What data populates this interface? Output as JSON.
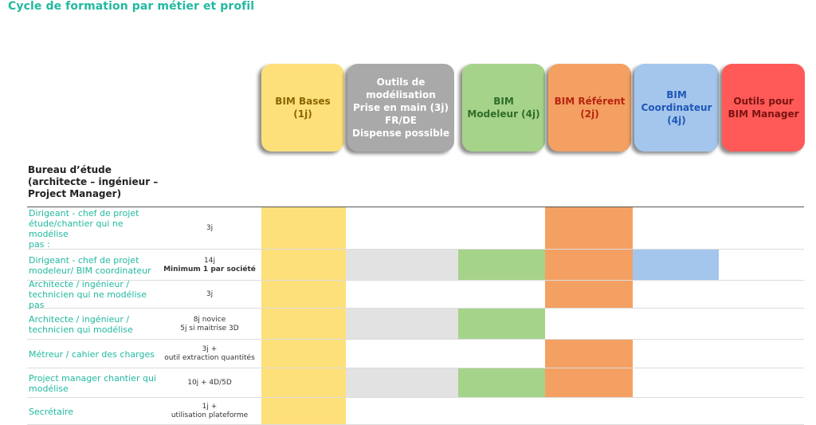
{
  "title": "Cycle de formation par métier et profil",
  "modules": [
    {
      "label": "BIM Bases (1j)",
      "bg": "#fde07a",
      "fg": "#8a6500"
    },
    {
      "label": "Outils de\nmodélisation\nPrise en main (3j)\nFR/DE\nDispense possible",
      "bg": "#a9a9a9",
      "fg": "#ffffff"
    },
    {
      "label": "BIM\nModeleur (4j)",
      "bg": "#a6d38a",
      "fg": "#2f6d2a"
    },
    {
      "label": "BIM Référent\n(2j)",
      "bg": "#f4a062",
      "fg": "#b8250f"
    },
    {
      "label": "BIM\nCoordinateur\n(4j)",
      "bg": "#a5c6ec",
      "fg": "#1f57b7"
    },
    {
      "label": "Outils pour\nBIM Manager",
      "bg": "#ff5a57",
      "fg": "#7a1212"
    }
  ],
  "group": {
    "heading": "Bureau d’étude\n(architecte – ingénieur –\nProject Manager)"
  },
  "rows": [
    {
      "label": "Dirigeant - chef de projet\nétude/chantier qui ne modélise\npas :",
      "duration": "3j",
      "note": "",
      "note_bold": false,
      "cells": [
        true,
        false,
        false,
        true,
        false,
        false
      ]
    },
    {
      "label": "Dirigeant - chef de projet\nmodeleur/ BIM coordinateur",
      "duration": "14j",
      "note": "Minimum 1 par société",
      "note_bold": true,
      "cells": [
        true,
        true,
        true,
        true,
        true,
        false
      ]
    },
    {
      "label": "Architecte / ingénieur /\ntechnicien qui ne modélise pas",
      "duration": "3j",
      "note": "",
      "note_bold": false,
      "cells": [
        true,
        false,
        false,
        true,
        false,
        false
      ]
    },
    {
      "label": "Architecte / ingénieur /\ntechnicien qui modélise",
      "duration": "8j novice",
      "note": "5j  si maitrise 3D",
      "note_bold": false,
      "cells": [
        true,
        true,
        true,
        false,
        false,
        false
      ]
    },
    {
      "label": "Métreur / cahier des charges",
      "duration": "3j +",
      "note": "outil extraction quantités",
      "note_bold": false,
      "cells": [
        true,
        false,
        false,
        true,
        false,
        false
      ]
    },
    {
      "label": "Project manager chantier qui\nmodélise",
      "duration": "10j + 4D/5D",
      "note": "",
      "note_bold": false,
      "cells": [
        true,
        true,
        true,
        true,
        false,
        false
      ]
    },
    {
      "label": "Secrétaire",
      "duration": "1j +",
      "note": "utilisation plateforme",
      "note_bold": false,
      "cells": [
        true,
        false,
        false,
        false,
        false,
        false
      ]
    }
  ],
  "colors": {
    "accent": "#22b9a0",
    "fill_bases": "#fde07a",
    "fill_outils": "#e2e2e2",
    "fill_modeleur": "#a6d38a",
    "fill_referent": "#f4a062",
    "fill_coordinateur": "#a5c6ec",
    "fill_manager": "#ff5a57"
  }
}
